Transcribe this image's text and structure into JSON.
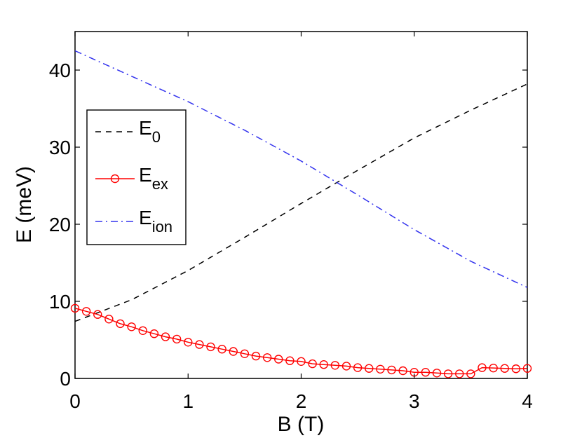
{
  "chart_data": {
    "type": "line",
    "title": "",
    "xlabel": "B (T)",
    "ylabel": "E (meV)",
    "xlim": [
      0,
      4
    ],
    "ylim": [
      0,
      45
    ],
    "xticks": [
      0,
      1,
      2,
      3,
      4
    ],
    "yticks": [
      0,
      10,
      20,
      30,
      40
    ],
    "xtick_labels": [
      "0",
      "1",
      "2",
      "3",
      "4"
    ],
    "ytick_labels": [
      "0",
      "10",
      "20",
      "30",
      "40"
    ],
    "grid": false,
    "legend_position": "upper-left",
    "series": [
      {
        "name": "E0",
        "label_main": "E",
        "label_sub": "0",
        "color": "#000000",
        "style": "dashed",
        "marker": "none",
        "x": [
          0,
          0.5,
          1.0,
          1.5,
          2.0,
          2.5,
          3.0,
          3.5,
          4.0
        ],
        "y": [
          7.4,
          10.2,
          14.0,
          18.3,
          22.7,
          27.0,
          31.2,
          34.8,
          38.2
        ]
      },
      {
        "name": "Eex",
        "label_main": "E",
        "label_sub": "ex",
        "color": "#ff0000",
        "style": "solid",
        "marker": "circle",
        "x": [
          0,
          0.1,
          0.2,
          0.3,
          0.4,
          0.5,
          0.6,
          0.7,
          0.8,
          0.9,
          1.0,
          1.1,
          1.2,
          1.3,
          1.4,
          1.5,
          1.6,
          1.7,
          1.8,
          1.9,
          2.0,
          2.1,
          2.2,
          2.3,
          2.4,
          2.5,
          2.6,
          2.7,
          2.8,
          2.9,
          3.0,
          3.1,
          3.2,
          3.3,
          3.4,
          3.5,
          3.6,
          3.7,
          3.8,
          3.9,
          4.0
        ],
        "y": [
          9.1,
          8.7,
          8.3,
          7.7,
          7.1,
          6.7,
          6.2,
          5.8,
          5.4,
          5.1,
          4.7,
          4.4,
          4.1,
          3.8,
          3.5,
          3.2,
          2.9,
          2.7,
          2.5,
          2.3,
          2.2,
          1.9,
          1.8,
          1.7,
          1.6,
          1.4,
          1.3,
          1.2,
          1.1,
          1.0,
          0.8,
          0.8,
          0.7,
          0.6,
          0.6,
          0.6,
          1.4,
          1.35,
          1.3,
          1.25,
          1.3
        ]
      },
      {
        "name": "Eion",
        "label_main": "E",
        "label_sub": "ion",
        "color": "#3333ee",
        "style": "dashdot",
        "marker": "none",
        "x": [
          0,
          0.5,
          1.0,
          1.5,
          2.0,
          2.5,
          3.0,
          3.5,
          4.0
        ],
        "y": [
          42.5,
          39.2,
          35.9,
          32.2,
          28.2,
          23.8,
          19.3,
          15.2,
          11.8
        ]
      }
    ]
  }
}
